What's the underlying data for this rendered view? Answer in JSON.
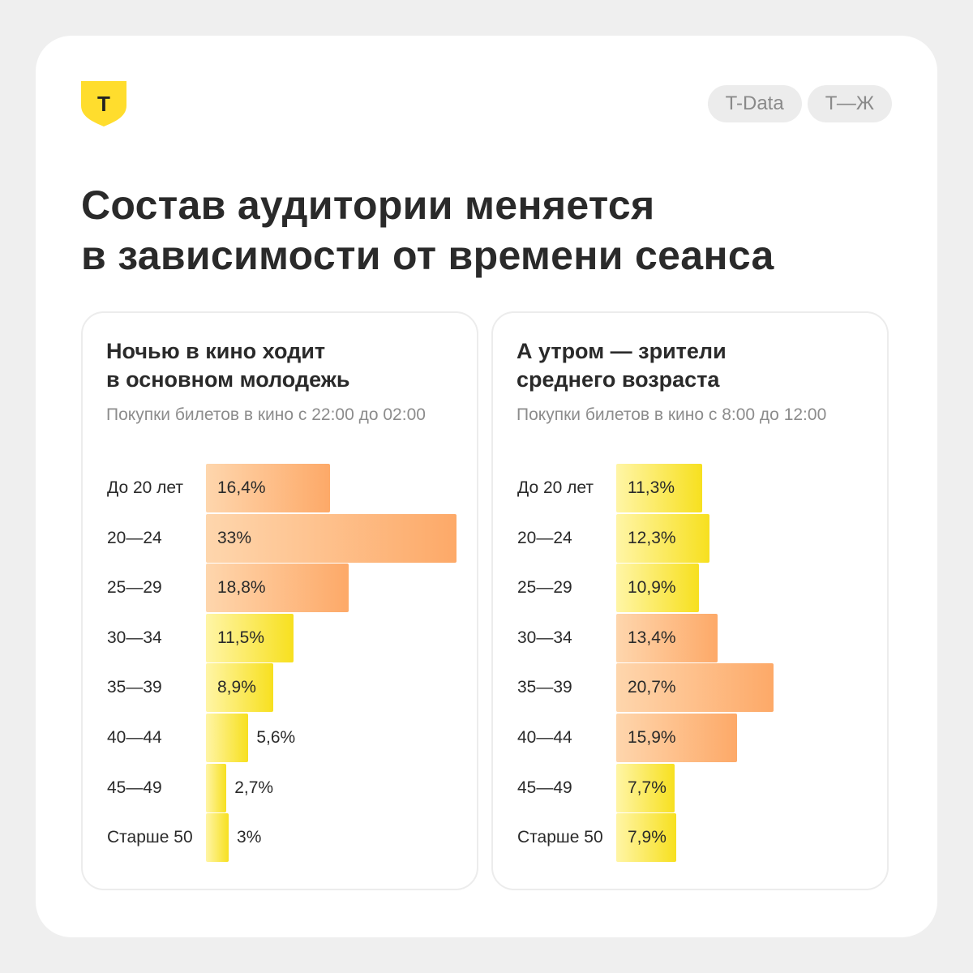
{
  "header": {
    "logo_letter": "Т",
    "tags": [
      "T-Data",
      "Т—Ж"
    ]
  },
  "title": {
    "line1": "Состав аудитории меняется",
    "line2": "в зависимости от времени сеанса"
  },
  "colors": {
    "brand": "#ffdd2d",
    "bar_yellow": "#f7e01f",
    "bar_orange": "#fda968"
  },
  "chart_data": [
    {
      "type": "bar",
      "orientation": "horizontal",
      "title_line1": "Ночью в кино ходит",
      "title_line2": "в основном молодежь",
      "subtitle": "Покупки билетов в кино с 22:00 до 02:00",
      "categories": [
        "До 20 лет",
        "20—24",
        "25—29",
        "30—34",
        "35—39",
        "40—44",
        "45—49",
        "Старше 50"
      ],
      "values": [
        16.4,
        33,
        18.8,
        11.5,
        8.9,
        5.6,
        2.7,
        3
      ],
      "value_labels": [
        "16,4%",
        "33%",
        "18,8%",
        "11,5%",
        "8,9%",
        "5,6%",
        "2,7%",
        "3%"
      ],
      "highlight": [
        "orange",
        "orange",
        "orange",
        "yellow",
        "yellow",
        "yellow",
        "yellow",
        "yellow"
      ]
    },
    {
      "type": "bar",
      "orientation": "horizontal",
      "title_line1": "А утром — зрители",
      "title_line2": "среднего возраста",
      "subtitle": "Покупки билетов в кино с 8:00 до 12:00",
      "categories": [
        "До 20 лет",
        "20—24",
        "25—29",
        "30—34",
        "35—39",
        "40—44",
        "45—49",
        "Старше 50"
      ],
      "values": [
        11.3,
        12.3,
        10.9,
        13.4,
        20.7,
        15.9,
        7.7,
        7.9
      ],
      "value_labels": [
        "11,3%",
        "12,3%",
        "10,9%",
        "13,4%",
        "20,7%",
        "15,9%",
        "7,7%",
        "7,9%"
      ],
      "highlight": [
        "yellow",
        "yellow",
        "yellow",
        "orange",
        "orange",
        "orange",
        "yellow",
        "yellow"
      ]
    }
  ]
}
